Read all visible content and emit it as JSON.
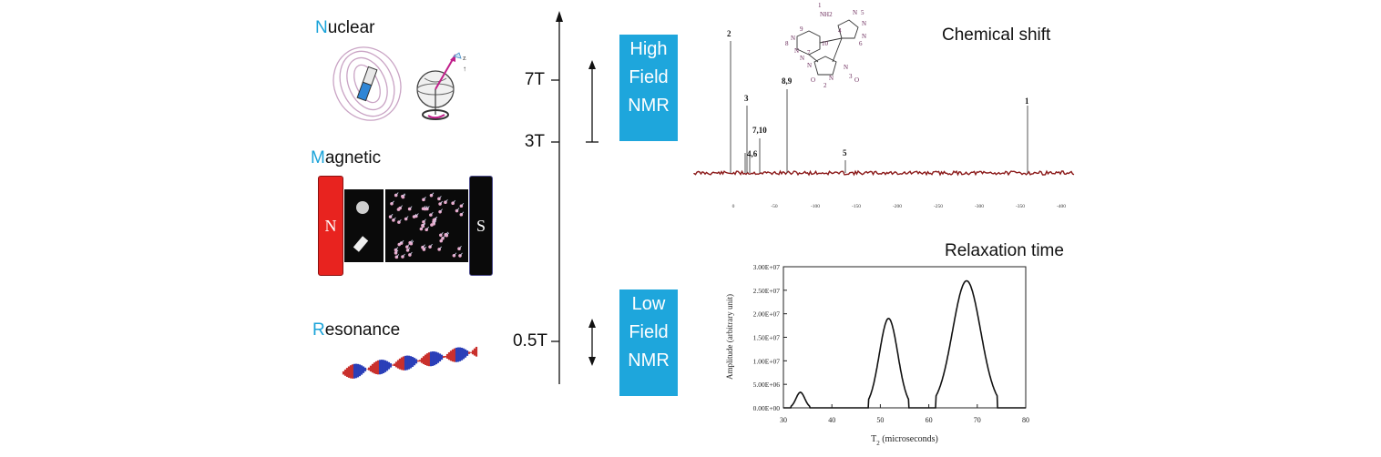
{
  "concepts": {
    "nuclear": {
      "initial": "N",
      "rest": "uclear"
    },
    "magnetic": {
      "initial": "M",
      "rest": "agnetic"
    },
    "resonance": {
      "initial": "R",
      "rest": "esonance"
    }
  },
  "magnet": {
    "north": "N",
    "south": "S"
  },
  "field_axis": {
    "ticks": [
      "7T",
      "3T",
      "0.5T"
    ]
  },
  "field_boxes": {
    "high": [
      "High",
      "Field",
      "NMR"
    ],
    "low": [
      "Low",
      "Field",
      "NMR"
    ]
  },
  "panels": {
    "spectrum_title": "Chemical shift",
    "relaxation_title": "Relaxation time"
  },
  "spectrum": {
    "peak_labels": [
      "2",
      "3",
      "7,10",
      "4,6",
      "8,9",
      "5",
      "1"
    ],
    "axis_ticks": [
      "0",
      "-50",
      "-100",
      "-150",
      "-200",
      "-250",
      "-300",
      "-350",
      "-400"
    ],
    "molecule_labels": [
      "1",
      "NH2",
      "N",
      "5",
      "N",
      "N",
      "4",
      "6",
      "9",
      "N",
      "N",
      "10",
      "8",
      "N",
      "N",
      "7",
      "N",
      "2",
      "N",
      "3",
      "O",
      "O"
    ]
  },
  "chart_data": {
    "type": "line",
    "title": "Relaxation time",
    "xlabel": "T2 (microseconds)",
    "ylabel": "Amplitude (arbitrary unit)",
    "xlim": [
      30,
      80
    ],
    "ylim": [
      0,
      30000000
    ],
    "xticks": [
      "30",
      "40",
      "50",
      "60",
      "70",
      "80"
    ],
    "yticks": [
      "0.00E+00",
      "5.00E+06",
      "1.00E+07",
      "1.50E+07",
      "2.00E+07",
      "2.50E+07",
      "3.00E+07"
    ],
    "peaks": [
      {
        "center": 33.5,
        "amplitude": 3300000,
        "width": 0.9
      },
      {
        "center": 51.7,
        "amplitude": 19000000,
        "width": 1.9
      },
      {
        "center": 67.8,
        "amplitude": 27000000,
        "width": 2.9
      }
    ],
    "legend": "none",
    "grid": false
  },
  "colors": {
    "accent": "#1ea6dc",
    "magnet_north": "#e8231f",
    "magnet_south": "#0a0a0a",
    "spectrum_line": "#8b1a1a"
  },
  "icons": [
    "magnet-field-icon",
    "spinning-nucleus-icon",
    "helix-wave-icon"
  ]
}
